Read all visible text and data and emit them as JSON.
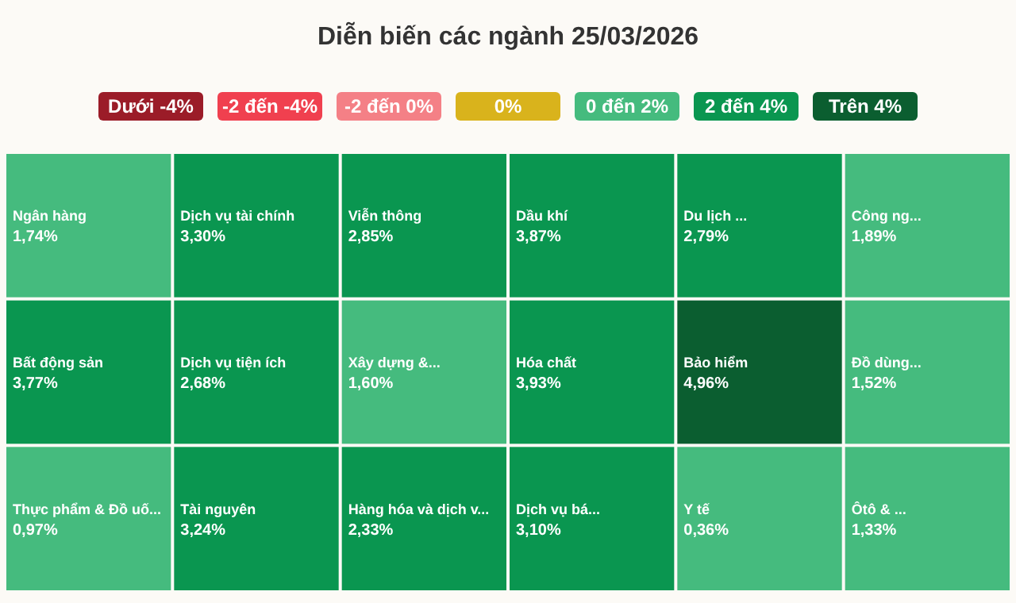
{
  "chart_data": {
    "type": "other",
    "title": "Diễn biến các ngành 25/03/2026",
    "annotations": [
      "Dưới -4%",
      "-2 đến -4%",
      "-2 đến 0%",
      "0%",
      "0 đến 2%",
      "2 đến 4%",
      "Trên 4%"
    ],
    "categories": [
      "Ngân hàng",
      "Bất động sản",
      "Thực phẩm & Đồ uố...",
      "Dịch vụ tài chính",
      "Dịch vụ tiện ích",
      "Tài nguyên",
      "Viễn thông",
      "Xây dựng &...",
      "Hàng hóa và dịch v...",
      "Dầu khí",
      "Hóa chất",
      "Dịch vụ bá...",
      "Du lịch ...",
      "Công ng...",
      "Bảo hiểm",
      "Y tế",
      "Đồ dùng...",
      "Ôtô & ..."
    ],
    "values": [
      1.74,
      3.77,
      0.97,
      3.3,
      2.68,
      3.24,
      2.85,
      1.6,
      2.33,
      3.87,
      3.93,
      3.1,
      2.79,
      1.89,
      4.96,
      0.36,
      1.52,
      1.33
    ],
    "value_labels": [
      "1,74%",
      "3,77%",
      "0,97%",
      "3,30%",
      "2,68%",
      "3,24%",
      "2,85%",
      "1,60%",
      "2,33%",
      "3,87%",
      "3,93%",
      "3,10%",
      "2,79%",
      "1,89%",
      "4,96%",
      "0,36%",
      "1,52%",
      "1,33%"
    ],
    "colors": [
      "#45bb7e",
      "#0a9650",
      "#45bb7e",
      "#0a9650",
      "#0a9650",
      "#0a9650",
      "#0a9650",
      "#45bb7e",
      "#0a9650",
      "#0a9650",
      "#0a9650",
      "#0a9650",
      "#0a9650",
      "#45bb7e",
      "#0b5e30",
      "#45bb7e",
      "#45bb7e",
      "#45bb7e"
    ]
  }
}
